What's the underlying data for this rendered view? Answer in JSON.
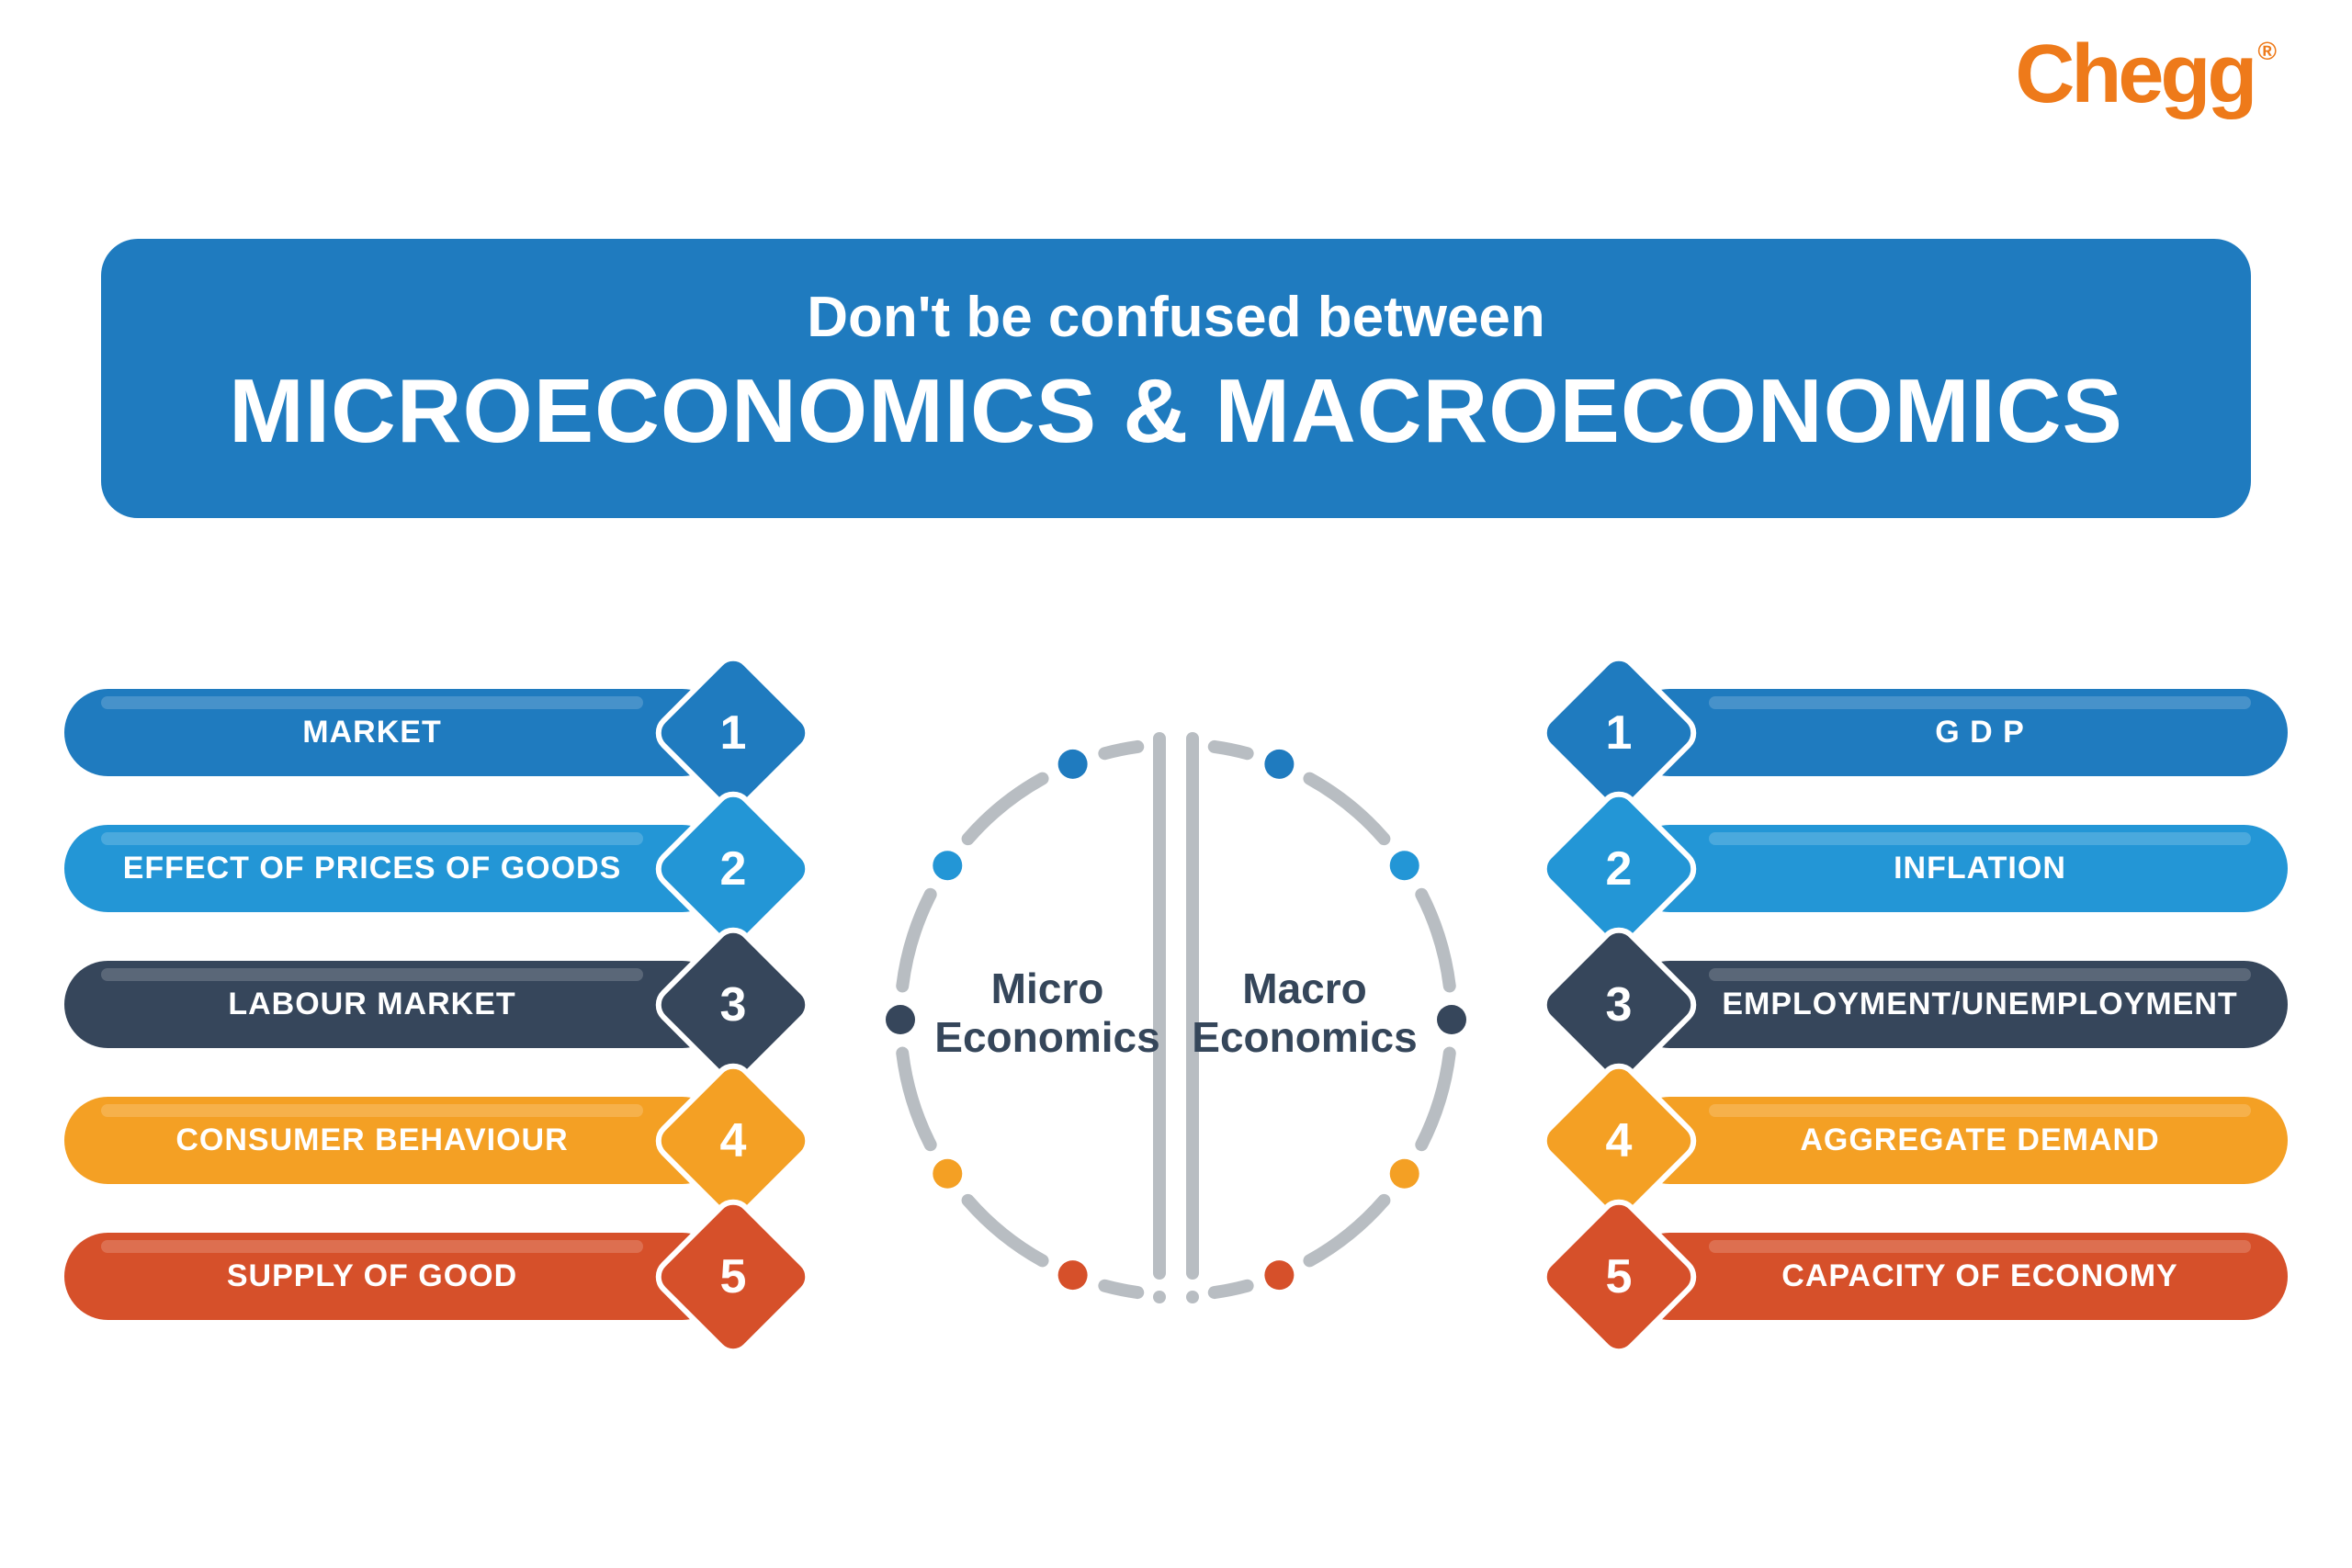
{
  "brand": {
    "name": "Chegg",
    "color": "#ee7a1a",
    "registered": "®"
  },
  "header": {
    "background": "#1f7bbf",
    "subtitle": "Don't be confused between",
    "title": "MICROECONOMICS & MACROECONOMICS"
  },
  "center": {
    "left_label_line1": "Micro",
    "left_label_line2": "Economics",
    "right_label_line1": "Macro",
    "right_label_line2": "Economics",
    "label_color": "#35465a",
    "ring_color": "#b8bdc2",
    "ring_stroke": 14
  },
  "colors": {
    "row1": "#1f7bbf",
    "row2": "#2396d6",
    "row3": "#36465b",
    "row4": "#f4a024",
    "row5": "#d6502a"
  },
  "micro": {
    "items": [
      {
        "n": "1",
        "label": "MARKET"
      },
      {
        "n": "2",
        "label": "EFFECT OF PRICES OF GOODS"
      },
      {
        "n": "3",
        "label": "LABOUR MARKET"
      },
      {
        "n": "4",
        "label": "CONSUMER BEHAVIOUR"
      },
      {
        "n": "5",
        "label": "SUPPLY OF GOOD"
      }
    ]
  },
  "macro": {
    "items": [
      {
        "n": "1",
        "label": "G D P"
      },
      {
        "n": "2",
        "label": "INFLATION"
      },
      {
        "n": "3",
        "label": "EMPLOYMENT/UNEMPLOYMENT"
      },
      {
        "n": "4",
        "label": "AGGREGATE DEMAND"
      },
      {
        "n": "5",
        "label": "CAPACITY OF ECONOMY"
      }
    ]
  },
  "dots": {
    "left": [
      {
        "angle": -68,
        "color": "#1f7bbf"
      },
      {
        "angle": -34,
        "color": "#2396d6"
      },
      {
        "angle": 0,
        "color": "#36465b"
      },
      {
        "angle": 34,
        "color": "#f4a024"
      },
      {
        "angle": 68,
        "color": "#d6502a"
      }
    ],
    "right": [
      {
        "angle": -68,
        "color": "#1f7bbf"
      },
      {
        "angle": -34,
        "color": "#2396d6"
      },
      {
        "angle": 0,
        "color": "#36465b"
      },
      {
        "angle": 34,
        "color": "#f4a024"
      },
      {
        "angle": 68,
        "color": "#d6502a"
      }
    ],
    "radius": 300,
    "dot_r": 16
  }
}
